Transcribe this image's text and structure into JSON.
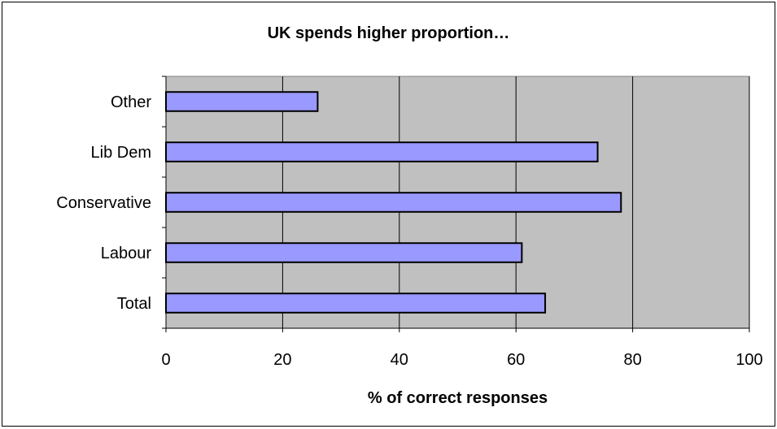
{
  "chart_data": {
    "type": "bar",
    "orientation": "horizontal",
    "title": "UK spends higher proportion…",
    "xlabel": "% of correct responses",
    "ylabel": "",
    "categories": [
      "Other",
      "Lib Dem",
      "Conservative",
      "Labour",
      "Total"
    ],
    "values": [
      26,
      74,
      78,
      61,
      65
    ],
    "xlim": [
      0,
      100
    ],
    "xticks": [
      0,
      20,
      40,
      60,
      80,
      100
    ],
    "grid": "vertical",
    "legend": "none",
    "colors": {
      "bar": "#9999ff",
      "plot_background": "#c0c0c0",
      "gridline": "#000000"
    }
  }
}
